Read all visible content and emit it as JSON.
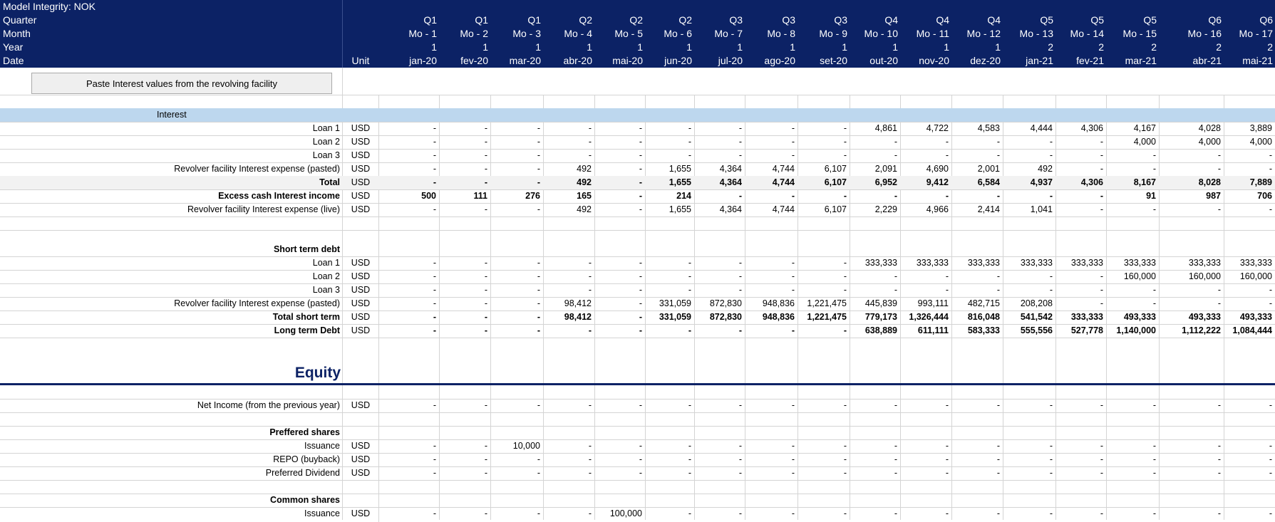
{
  "header": {
    "labels": [
      "Model Integrity: NOK",
      "Quarter",
      "Month",
      "Year",
      "Date"
    ],
    "unit_label": "Unit",
    "columns": [
      {
        "q": "Q1",
        "m": "Mo - 1",
        "y": "1",
        "d": "jan-20"
      },
      {
        "q": "Q1",
        "m": "Mo - 2",
        "y": "1",
        "d": "fev-20"
      },
      {
        "q": "Q1",
        "m": "Mo - 3",
        "y": "1",
        "d": "mar-20"
      },
      {
        "q": "Q2",
        "m": "Mo - 4",
        "y": "1",
        "d": "abr-20"
      },
      {
        "q": "Q2",
        "m": "Mo - 5",
        "y": "1",
        "d": "mai-20"
      },
      {
        "q": "Q2",
        "m": "Mo - 6",
        "y": "1",
        "d": "jun-20"
      },
      {
        "q": "Q3",
        "m": "Mo - 7",
        "y": "1",
        "d": "jul-20"
      },
      {
        "q": "Q3",
        "m": "Mo - 8",
        "y": "1",
        "d": "ago-20"
      },
      {
        "q": "Q3",
        "m": "Mo - 9",
        "y": "1",
        "d": "set-20"
      },
      {
        "q": "Q4",
        "m": "Mo - 10",
        "y": "1",
        "d": "out-20"
      },
      {
        "q": "Q4",
        "m": "Mo - 11",
        "y": "1",
        "d": "nov-20"
      },
      {
        "q": "Q4",
        "m": "Mo - 12",
        "y": "1",
        "d": "dez-20"
      },
      {
        "q": "Q5",
        "m": "Mo - 13",
        "y": "2",
        "d": "jan-21"
      },
      {
        "q": "Q5",
        "m": "Mo - 14",
        "y": "2",
        "d": "fev-21"
      },
      {
        "q": "Q5",
        "m": "Mo - 15",
        "y": "2",
        "d": "mar-21"
      },
      {
        "q": "Q6",
        "m": "Mo - 16",
        "y": "2",
        "d": "abr-21"
      },
      {
        "q": "Q6",
        "m": "Mo - 17",
        "y": "2",
        "d": "mai-21"
      }
    ]
  },
  "button": {
    "label": "Paste Interest values from the revolving facility"
  },
  "sections": {
    "interest_title": "Interest",
    "equity_title": "Equity"
  },
  "rows": [
    {
      "label": "Loan 1",
      "unit": "USD",
      "bold": false,
      "values": [
        "-",
        "-",
        "-",
        "-",
        "-",
        "-",
        "-",
        "-",
        "-",
        "4,861",
        "4,722",
        "4,583",
        "4,444",
        "4,306",
        "4,167",
        "4,028",
        "3,889"
      ]
    },
    {
      "label": "Loan 2",
      "unit": "USD",
      "bold": false,
      "values": [
        "-",
        "-",
        "-",
        "-",
        "-",
        "-",
        "-",
        "-",
        "-",
        "-",
        "-",
        "-",
        "-",
        "-",
        "4,000",
        "4,000",
        "4,000"
      ]
    },
    {
      "label": "Loan 3",
      "unit": "USD",
      "bold": false,
      "values": [
        "-",
        "-",
        "-",
        "-",
        "-",
        "-",
        "-",
        "-",
        "-",
        "-",
        "-",
        "-",
        "-",
        "-",
        "-",
        "-",
        "-"
      ]
    },
    {
      "label": "Revolver facility Interest expense (pasted)",
      "unit": "USD",
      "bold": false,
      "values": [
        "-",
        "-",
        "-",
        "492",
        "-",
        "1,655",
        "4,364",
        "4,744",
        "6,107",
        "2,091",
        "4,690",
        "2,001",
        "492",
        "-",
        "-",
        "-",
        "-"
      ]
    },
    {
      "label": "Total",
      "unit": "USD",
      "bold": true,
      "values": [
        "-",
        "-",
        "-",
        "492",
        "-",
        "1,655",
        "4,364",
        "4,744",
        "6,107",
        "6,952",
        "9,412",
        "6,584",
        "4,937",
        "4,306",
        "8,167",
        "8,028",
        "7,889"
      ]
    },
    {
      "label": "Excess cash Interest income",
      "unit": "USD",
      "bold": true,
      "values": [
        "500",
        "111",
        "276",
        "165",
        "-",
        "214",
        "-",
        "-",
        "-",
        "-",
        "-",
        "-",
        "-",
        "-",
        "91",
        "987",
        "706"
      ]
    },
    {
      "label": "Revolver facility Interest expense (live)",
      "unit": "USD",
      "bold": false,
      "values": [
        "-",
        "-",
        "-",
        "492",
        "-",
        "1,655",
        "4,364",
        "4,744",
        "6,107",
        "2,229",
        "4,966",
        "2,414",
        "1,041",
        "-",
        "-",
        "-",
        "-"
      ]
    },
    {
      "label": "Short term debt",
      "unit": "",
      "bold": true,
      "values": []
    },
    {
      "label": "Loan 1",
      "unit": "USD",
      "bold": false,
      "values": [
        "-",
        "-",
        "-",
        "-",
        "-",
        "-",
        "-",
        "-",
        "-",
        "333,333",
        "333,333",
        "333,333",
        "333,333",
        "333,333",
        "333,333",
        "333,333",
        "333,333"
      ]
    },
    {
      "label": "Loan 2",
      "unit": "USD",
      "bold": false,
      "values": [
        "-",
        "-",
        "-",
        "-",
        "-",
        "-",
        "-",
        "-",
        "-",
        "-",
        "-",
        "-",
        "-",
        "-",
        "160,000",
        "160,000",
        "160,000"
      ]
    },
    {
      "label": "Loan 3",
      "unit": "USD",
      "bold": false,
      "values": [
        "-",
        "-",
        "-",
        "-",
        "-",
        "-",
        "-",
        "-",
        "-",
        "-",
        "-",
        "-",
        "-",
        "-",
        "-",
        "-",
        "-"
      ]
    },
    {
      "label": "Revolver facility Interest expense (pasted)",
      "unit": "USD",
      "bold": false,
      "values": [
        "-",
        "-",
        "-",
        "98,412",
        "-",
        "331,059",
        "872,830",
        "948,836",
        "1,221,475",
        "445,839",
        "993,111",
        "482,715",
        "208,208",
        "-",
        "-",
        "-",
        "-"
      ]
    },
    {
      "label": "Total short term",
      "unit": "USD",
      "bold": true,
      "values": [
        "-",
        "-",
        "-",
        "98,412",
        "-",
        "331,059",
        "872,830",
        "948,836",
        "1,221,475",
        "779,173",
        "1,326,444",
        "816,048",
        "541,542",
        "333,333",
        "493,333",
        "493,333",
        "493,333"
      ]
    },
    {
      "label": "Long term Debt",
      "unit": "USD",
      "bold": true,
      "values": [
        "-",
        "-",
        "-",
        "-",
        "-",
        "-",
        "-",
        "-",
        "-",
        "638,889",
        "611,111",
        "583,333",
        "555,556",
        "527,778",
        "1,140,000",
        "1,112,222",
        "1,084,444"
      ]
    },
    {
      "label": "Net Income (from the previous year)",
      "unit": "USD",
      "bold": false,
      "values": [
        "-",
        "-",
        "-",
        "-",
        "-",
        "-",
        "-",
        "-",
        "-",
        "-",
        "-",
        "-",
        "-",
        "-",
        "-",
        "-",
        "-"
      ]
    },
    {
      "label": "Preffered shares",
      "unit": "",
      "bold": true,
      "values": []
    },
    {
      "label": "Issuance",
      "unit": "USD",
      "bold": false,
      "values": [
        "-",
        "-",
        "10,000",
        "-",
        "-",
        "-",
        "-",
        "-",
        "-",
        "-",
        "-",
        "-",
        "-",
        "-",
        "-",
        "-",
        "-"
      ]
    },
    {
      "label": "REPO (buyback)",
      "unit": "USD",
      "bold": false,
      "values": [
        "-",
        "-",
        "-",
        "-",
        "-",
        "-",
        "-",
        "-",
        "-",
        "-",
        "-",
        "-",
        "-",
        "-",
        "-",
        "-",
        "-"
      ]
    },
    {
      "label": "Preferred Dividend",
      "unit": "USD",
      "bold": false,
      "values": [
        "-",
        "-",
        "-",
        "-",
        "-",
        "-",
        "-",
        "-",
        "-",
        "-",
        "-",
        "-",
        "-",
        "-",
        "-",
        "-",
        "-"
      ]
    },
    {
      "label": "Common shares",
      "unit": "",
      "bold": true,
      "values": []
    },
    {
      "label": "Issuance",
      "unit": "USD",
      "bold": false,
      "values": [
        "-",
        "-",
        "-",
        "-",
        "100,000",
        "-",
        "-",
        "-",
        "-",
        "-",
        "-",
        "-",
        "-",
        "-",
        "-",
        "-",
        "-"
      ]
    }
  ],
  "colors": {
    "header_bg": "#0c2265",
    "interest_band": "#bdd7ee",
    "total_band": "#f2f2f2",
    "equity_text": "#0c2265"
  }
}
